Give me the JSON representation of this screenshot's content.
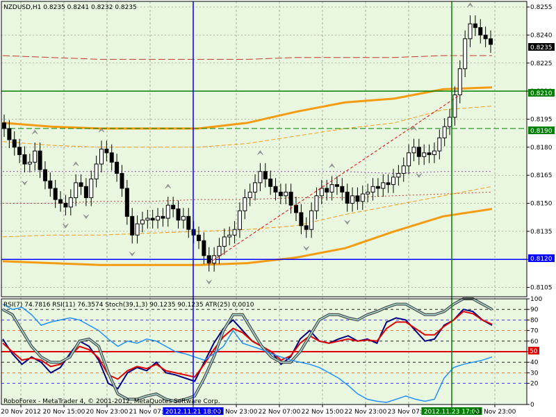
{
  "header": {
    "main_title": "NZDUSD,H1  0.8235 0.8241 0.8232 0.8235",
    "sub_title": "RSI(7) 74.7816  RSI(11) 76.3574  Stoch(39,1,3) 90.1235 90.1235  ATR(25) 0.0010"
  },
  "watermark": "RoboForex - MetaTrader 4, © 2001-2012, MetaQuotes Software Corp.",
  "colors": {
    "background": "#e9f7e0",
    "grid": "#000000",
    "candle_up": "#ffffff",
    "candle_down": "#000000",
    "band_main": "#f39c12",
    "band_red": "#c0392b",
    "band_purple": "#8e44ad",
    "hline_blue": "#0000ff",
    "hline_green": "#008000",
    "rsi_fast": "#000080",
    "rsi_slow": "#e00000",
    "stoch": "#808080",
    "atr": "#1e90ff"
  },
  "chart_data": [
    {
      "type": "candlestick",
      "symbol": "NZDUSD",
      "timeframe": "H1",
      "y_ticks": [
        "0.8255",
        "0.8240",
        "0.8225",
        "0.8210",
        "0.8195",
        "0.8180",
        "0.8165",
        "0.8150",
        "0.8135",
        "0.8120",
        "0.8105"
      ],
      "ylim": [
        0.81,
        0.8258
      ],
      "x_ticks": [
        "20 Nov 2012",
        "20 Nov 15:00",
        "20 Nov 23:00",
        "21 Nov 07:00",
        "2012.11.21 18:00",
        "21 Nov 23:00",
        "22 Nov 07:00",
        "22 Nov 15:00",
        "22 Nov 23:00",
        "23 Nov 07:00",
        "2012.11.23 17:00",
        "23 Nov 23:00"
      ],
      "price_labels": {
        "current": "0.8235",
        "green_line": "0.8210",
        "green_dashed": "0.8190",
        "blue_line": "0.8120"
      },
      "horizontal_levels": {
        "green_line": 0.821,
        "green_dashed": 0.819,
        "blue_line": 0.812
      },
      "closes": [
        0.819,
        0.8184,
        0.818,
        0.8176,
        0.8171,
        0.8172,
        0.8178,
        0.8168,
        0.8162,
        0.8158,
        0.8152,
        0.815,
        0.8148,
        0.8153,
        0.8161,
        0.8159,
        0.8153,
        0.8163,
        0.8171,
        0.8179,
        0.8177,
        0.8172,
        0.8166,
        0.8158,
        0.8143,
        0.8133,
        0.8139,
        0.8141,
        0.8142,
        0.8141,
        0.8143,
        0.8142,
        0.8149,
        0.8147,
        0.8141,
        0.8143,
        0.8136,
        0.8133,
        0.813,
        0.8122,
        0.8118,
        0.8122,
        0.8127,
        0.8132,
        0.8133,
        0.8136,
        0.8146,
        0.8153,
        0.8156,
        0.8161,
        0.8167,
        0.8163,
        0.8159,
        0.8156,
        0.8154,
        0.8156,
        0.8149,
        0.8145,
        0.8138,
        0.8136,
        0.8146,
        0.8154,
        0.8158,
        0.8156,
        0.816,
        0.8159,
        0.8156,
        0.815,
        0.8154,
        0.8151,
        0.8155,
        0.8156,
        0.8159,
        0.8158,
        0.8161,
        0.816,
        0.8164,
        0.8166,
        0.817,
        0.8177,
        0.818,
        0.8175,
        0.8177,
        0.8176,
        0.8178,
        0.8185,
        0.8191,
        0.8196,
        0.8208,
        0.8222,
        0.8238,
        0.8246,
        0.8244,
        0.824,
        0.8238,
        0.8235
      ],
      "opens": [
        0.8193,
        0.819,
        0.8184,
        0.818,
        0.8176,
        0.8171,
        0.8172,
        0.8178,
        0.8168,
        0.8162,
        0.8158,
        0.8152,
        0.815,
        0.8148,
        0.8153,
        0.8161,
        0.8159,
        0.8153,
        0.8163,
        0.8171,
        0.8179,
        0.8177,
        0.8172,
        0.8166,
        0.8158,
        0.8143,
        0.8133,
        0.8139,
        0.8141,
        0.8142,
        0.8141,
        0.8143,
        0.8142,
        0.8149,
        0.8147,
        0.8141,
        0.8143,
        0.8136,
        0.8133,
        0.813,
        0.8122,
        0.8118,
        0.8122,
        0.8127,
        0.8132,
        0.8133,
        0.8136,
        0.8146,
        0.8153,
        0.8156,
        0.8161,
        0.8167,
        0.8163,
        0.8159,
        0.8156,
        0.8154,
        0.8156,
        0.8149,
        0.8145,
        0.8138,
        0.8136,
        0.8146,
        0.8154,
        0.8158,
        0.8156,
        0.816,
        0.8159,
        0.8156,
        0.815,
        0.8154,
        0.8151,
        0.8155,
        0.8156,
        0.8159,
        0.8158,
        0.8161,
        0.816,
        0.8164,
        0.8166,
        0.817,
        0.8177,
        0.818,
        0.8175,
        0.8177,
        0.8176,
        0.8178,
        0.8185,
        0.8191,
        0.8196,
        0.8208,
        0.8222,
        0.8238,
        0.8246,
        0.8244,
        0.824,
        0.8238
      ],
      "bands": {
        "upper_orange": [
          0.8193,
          0.8191,
          0.819,
          0.819,
          0.819,
          0.8193,
          0.8199,
          0.8204,
          0.8206,
          0.8211,
          0.8212
        ],
        "upper_orange_thin": [
          0.8183,
          0.8181,
          0.818,
          0.818,
          0.818,
          0.8182,
          0.8186,
          0.819,
          0.8193,
          0.82,
          0.8202
        ],
        "red_dashed_upper": [
          0.8229,
          0.8228,
          0.8227,
          0.8227,
          0.8227,
          0.8227,
          0.8228,
          0.8228,
          0.8228,
          0.8229,
          0.8229
        ],
        "purple_dotted": [
          0.8167,
          0.8167,
          0.8167,
          0.8167,
          0.8167,
          0.8167,
          0.8167,
          0.8167,
          0.8166,
          0.8167,
          0.8167
        ],
        "red_dotted_mid": [
          0.815,
          0.815,
          0.8151,
          0.8151,
          0.8152,
          0.8152,
          0.8153,
          0.8153,
          0.8154,
          0.8155,
          0.8156
        ],
        "lower_orange_thin": [
          0.8132,
          0.8133,
          0.8133,
          0.8134,
          0.8135,
          0.8136,
          0.8138,
          0.8144,
          0.8149,
          0.8154,
          0.8159
        ],
        "lower_orange": [
          0.8119,
          0.8118,
          0.8117,
          0.8117,
          0.8117,
          0.8118,
          0.8121,
          0.8126,
          0.8135,
          0.8143,
          0.8147
        ]
      },
      "trendline": {
        "from": [
          0.8118
        ],
        "to": [
          0.8208
        ]
      }
    },
    {
      "type": "line",
      "y_ticks": [
        "100",
        "90",
        "80",
        "70",
        "60",
        "50",
        "40",
        "30",
        "20",
        "0"
      ],
      "ylim": [
        0,
        100
      ],
      "level_50_label": "50",
      "series": [
        {
          "name": "RSI(7)",
          "values": [
            62,
            48,
            38,
            45,
            40,
            30,
            35,
            48,
            60,
            55,
            42,
            20,
            15,
            30,
            35,
            32,
            40,
            30,
            28,
            25,
            22,
            40,
            58,
            72,
            80,
            70,
            60,
            55,
            50,
            38,
            45,
            62,
            70,
            60,
            58,
            62,
            65,
            60,
            62,
            58,
            78,
            82,
            80,
            70,
            60,
            62,
            75,
            80,
            90,
            88,
            80,
            75
          ]
        },
        {
          "name": "RSI(11)",
          "values": [
            58,
            50,
            42,
            44,
            42,
            36,
            38,
            46,
            55,
            52,
            44,
            28,
            24,
            32,
            36,
            34,
            38,
            32,
            30,
            28,
            26,
            38,
            52,
            64,
            72,
            68,
            60,
            55,
            50,
            42,
            46,
            58,
            65,
            60,
            58,
            60,
            62,
            60,
            61,
            60,
            72,
            78,
            78,
            72,
            66,
            66,
            74,
            80,
            88,
            86,
            80,
            76
          ]
        },
        {
          "name": "Stoch(39,1,3)",
          "values": [
            90,
            85,
            70,
            55,
            45,
            40,
            40,
            45,
            60,
            62,
            55,
            30,
            10,
            5,
            5,
            8,
            10,
            5,
            3,
            5,
            8,
            25,
            45,
            70,
            85,
            85,
            70,
            55,
            45,
            40,
            40,
            50,
            65,
            80,
            85,
            85,
            82,
            80,
            85,
            88,
            92,
            95,
            95,
            90,
            85,
            85,
            88,
            95,
            100,
            100,
            95,
            90
          ]
        },
        {
          "name": "ATR(25)",
          "values": [
            95,
            90,
            92,
            85,
            75,
            78,
            80,
            82,
            80,
            75,
            70,
            62,
            55,
            60,
            58,
            62,
            60,
            55,
            50,
            48,
            45,
            42,
            48,
            55,
            70,
            58,
            55,
            52,
            48,
            45,
            42,
            40,
            38,
            35,
            30,
            25,
            18,
            10,
            5,
            3,
            2,
            5,
            8,
            5,
            3,
            5,
            25,
            35,
            38,
            40,
            42,
            45
          ]
        }
      ]
    }
  ]
}
